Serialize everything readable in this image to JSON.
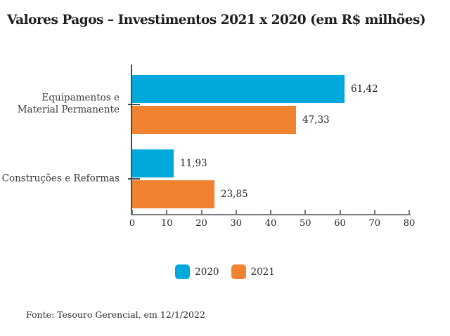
{
  "title": "Valores Pagos – Investimentos 2021 x 2020 (em R$ milhões)",
  "source": "Fonte: Tesouro Gerencial, em 12/1/2022",
  "colors": {
    "series_2020": "#00A9DC",
    "series_2021": "#F08230",
    "axis_line": "#77787B",
    "category_axis": "#4A4A4B",
    "text": "#232323"
  },
  "chart_data": {
    "type": "bar",
    "orientation": "horizontal",
    "title": "Valores Pagos – Investimentos 2021 x 2020 (em R$ milhões)",
    "categories": [
      {
        "label": "Equipamentos e Material Permanente",
        "lines": [
          "Equipamentos e",
          "Material Permanente"
        ]
      },
      {
        "label": "Construções e Reformas",
        "lines": [
          "Construções e Reformas"
        ]
      }
    ],
    "series": [
      {
        "name": "2020",
        "color": "#00A9DC",
        "values": [
          61.42,
          11.93
        ],
        "value_labels": [
          "61,42",
          "11,93"
        ]
      },
      {
        "name": "2021",
        "color": "#F08230",
        "values": [
          47.33,
          23.85
        ],
        "value_labels": [
          "47,33",
          "23,85"
        ]
      }
    ],
    "xlim": [
      0,
      80
    ],
    "xticks": [
      "0",
      "10",
      "20",
      "30",
      "40",
      "50",
      "60",
      "70",
      "80"
    ],
    "grid": false,
    "legend_position": "bottom",
    "unit": "R$ milhões",
    "source": "Fonte: Tesouro Gerencial, em 12/1/2022"
  }
}
